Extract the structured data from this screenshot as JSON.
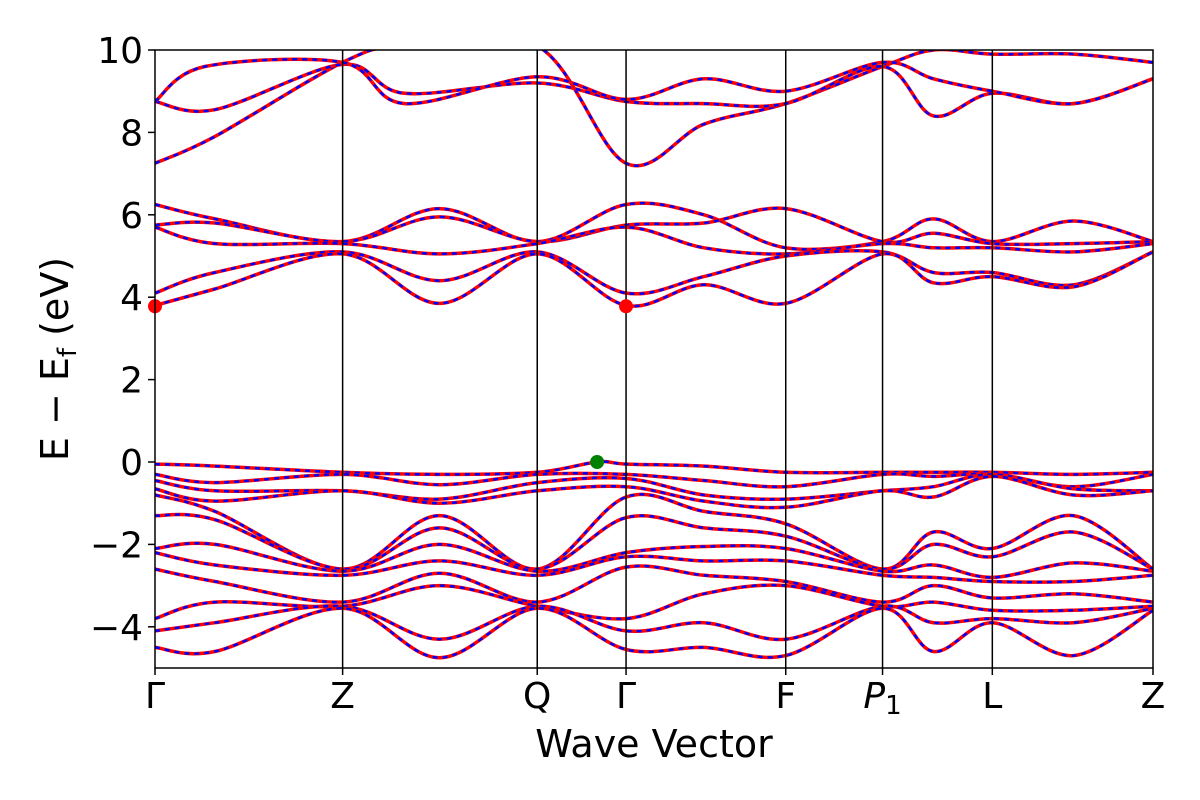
{
  "chart_data": {
    "type": "line",
    "xlabel": "Wave Vector",
    "ylabel": "E − E_f (eV)",
    "ylabel_parts": {
      "pre": "E − E",
      "sub": "f",
      "post": " (eV)"
    },
    "ylim": [
      -5,
      10
    ],
    "yticks": [
      -4,
      -2,
      0,
      2,
      4,
      6,
      8,
      10
    ],
    "ytick_labels": [
      "−4",
      "−2",
      "0",
      "2",
      "4",
      "6",
      "8",
      "10"
    ],
    "xlim": [
      0,
      1
    ],
    "high_symmetry_points": [
      {
        "label": "Γ",
        "x": 0.0
      },
      {
        "label": "Z",
        "x": 0.188
      },
      {
        "label": "Q",
        "x": 0.383
      },
      {
        "label": "Γ",
        "x": 0.472
      },
      {
        "label": "F",
        "x": 0.632
      },
      {
        "label": "P",
        "sub": "1",
        "italic": true,
        "x": 0.729
      },
      {
        "label": "L",
        "x": 0.839
      },
      {
        "label": "Z",
        "x": 1.0
      }
    ],
    "band_colors": {
      "line": "#ff0000",
      "dash": "#0000ff"
    },
    "markers": [
      {
        "kind": "cbm",
        "x": 0.0,
        "y": 3.78,
        "color": "#ff0000"
      },
      {
        "kind": "cbm",
        "x": 0.472,
        "y": 3.78,
        "color": "#ff0000"
      },
      {
        "kind": "vbm",
        "x": 0.443,
        "y": 0.0,
        "color": "#008000"
      }
    ],
    "series": [
      {
        "values": [
          [
            0,
            7.25
          ],
          [
            0.06,
            7.9
          ],
          [
            0.188,
            9.7
          ],
          [
            0.25,
            10.1
          ],
          [
            0.383,
            10.1
          ],
          [
            0.472,
            7.25
          ],
          [
            0.55,
            8.2
          ],
          [
            0.632,
            8.7
          ],
          [
            0.729,
            9.6
          ],
          [
            0.78,
            10.0
          ],
          [
            0.839,
            9.9
          ],
          [
            0.92,
            9.9
          ],
          [
            1.0,
            9.7
          ]
        ]
      },
      {
        "values": [
          [
            0,
            8.75
          ],
          [
            0.06,
            8.55
          ],
          [
            0.188,
            9.65
          ],
          [
            0.25,
            8.95
          ],
          [
            0.383,
            9.2
          ],
          [
            0.472,
            8.75
          ],
          [
            0.55,
            8.7
          ],
          [
            0.632,
            8.7
          ],
          [
            0.729,
            9.6
          ],
          [
            0.78,
            8.4
          ],
          [
            0.839,
            8.95
          ],
          [
            0.92,
            8.7
          ],
          [
            1.0,
            9.3
          ]
        ]
      },
      {
        "values": [
          [
            0,
            8.75
          ],
          [
            0.05,
            9.6
          ],
          [
            0.188,
            9.7
          ],
          [
            0.25,
            8.7
          ],
          [
            0.383,
            9.35
          ],
          [
            0.472,
            8.8
          ],
          [
            0.55,
            9.3
          ],
          [
            0.632,
            9.0
          ],
          [
            0.729,
            9.7
          ],
          [
            0.78,
            9.3
          ],
          [
            0.839,
            9.0
          ],
          [
            0.92,
            8.7
          ],
          [
            1.0,
            9.3
          ]
        ]
      },
      {
        "values": [
          [
            0,
            6.25
          ],
          [
            0.06,
            5.9
          ],
          [
            0.188,
            5.35
          ],
          [
            0.285,
            6.15
          ],
          [
            0.383,
            5.35
          ],
          [
            0.472,
            6.25
          ],
          [
            0.55,
            6.0
          ],
          [
            0.632,
            5.2
          ],
          [
            0.729,
            5.35
          ],
          [
            0.78,
            5.9
          ],
          [
            0.839,
            5.35
          ],
          [
            0.92,
            5.85
          ],
          [
            1.0,
            5.35
          ]
        ]
      },
      {
        "values": [
          [
            0,
            5.75
          ],
          [
            0.06,
            5.8
          ],
          [
            0.188,
            5.35
          ],
          [
            0.285,
            5.95
          ],
          [
            0.383,
            5.35
          ],
          [
            0.472,
            5.75
          ],
          [
            0.55,
            5.8
          ],
          [
            0.632,
            6.15
          ],
          [
            0.729,
            5.35
          ],
          [
            0.78,
            5.55
          ],
          [
            0.839,
            5.3
          ],
          [
            0.92,
            5.3
          ],
          [
            1.0,
            5.35
          ]
        ]
      },
      {
        "values": [
          [
            0,
            5.7
          ],
          [
            0.06,
            5.3
          ],
          [
            0.188,
            5.3
          ],
          [
            0.285,
            5.05
          ],
          [
            0.383,
            5.3
          ],
          [
            0.472,
            5.7
          ],
          [
            0.55,
            5.2
          ],
          [
            0.632,
            5.05
          ],
          [
            0.729,
            5.3
          ],
          [
            0.78,
            5.2
          ],
          [
            0.839,
            5.2
          ],
          [
            0.92,
            5.1
          ],
          [
            1.0,
            5.3
          ]
        ]
      },
      {
        "values": [
          [
            0,
            4.1
          ],
          [
            0.06,
            4.6
          ],
          [
            0.188,
            5.1
          ],
          [
            0.285,
            4.4
          ],
          [
            0.383,
            5.1
          ],
          [
            0.472,
            4.1
          ],
          [
            0.55,
            4.5
          ],
          [
            0.632,
            5.0
          ],
          [
            0.729,
            5.1
          ],
          [
            0.78,
            4.6
          ],
          [
            0.839,
            4.6
          ],
          [
            0.92,
            4.3
          ],
          [
            1.0,
            5.1
          ]
        ]
      },
      {
        "values": [
          [
            0,
            3.8
          ],
          [
            0.06,
            4.2
          ],
          [
            0.188,
            5.05
          ],
          [
            0.285,
            3.85
          ],
          [
            0.383,
            5.05
          ],
          [
            0.472,
            3.8
          ],
          [
            0.55,
            4.3
          ],
          [
            0.632,
            3.85
          ],
          [
            0.729,
            5.05
          ],
          [
            0.78,
            4.35
          ],
          [
            0.839,
            4.5
          ],
          [
            0.92,
            4.25
          ],
          [
            1.0,
            5.1
          ]
        ]
      },
      {
        "values": [
          [
            0,
            -0.05
          ],
          [
            0.06,
            -0.1
          ],
          [
            0.188,
            -0.25
          ],
          [
            0.285,
            -0.3
          ],
          [
            0.383,
            -0.25
          ],
          [
            0.443,
            0.0
          ],
          [
            0.472,
            -0.05
          ],
          [
            0.55,
            -0.1
          ],
          [
            0.632,
            -0.25
          ],
          [
            0.729,
            -0.25
          ],
          [
            0.78,
            -0.25
          ],
          [
            0.839,
            -0.25
          ],
          [
            0.92,
            -0.3
          ],
          [
            1.0,
            -0.25
          ]
        ]
      },
      {
        "values": [
          [
            0,
            -0.3
          ],
          [
            0.06,
            -0.5
          ],
          [
            0.188,
            -0.3
          ],
          [
            0.285,
            -0.55
          ],
          [
            0.383,
            -0.3
          ],
          [
            0.472,
            -0.3
          ],
          [
            0.55,
            -0.45
          ],
          [
            0.632,
            -0.6
          ],
          [
            0.729,
            -0.3
          ],
          [
            0.78,
            -0.35
          ],
          [
            0.839,
            -0.3
          ],
          [
            0.92,
            -0.6
          ],
          [
            1.0,
            -0.3
          ]
        ]
      },
      {
        "values": [
          [
            0,
            -0.45
          ],
          [
            0.06,
            -0.7
          ],
          [
            0.188,
            -0.7
          ],
          [
            0.285,
            -0.9
          ],
          [
            0.383,
            -0.5
          ],
          [
            0.472,
            -0.4
          ],
          [
            0.55,
            -0.8
          ],
          [
            0.632,
            -0.9
          ],
          [
            0.729,
            -0.7
          ],
          [
            0.78,
            -0.6
          ],
          [
            0.839,
            -0.3
          ],
          [
            0.92,
            -0.65
          ],
          [
            1.0,
            -0.7
          ]
        ]
      },
      {
        "values": [
          [
            0,
            -0.65
          ],
          [
            0.06,
            -0.95
          ],
          [
            0.188,
            -0.7
          ],
          [
            0.285,
            -1.0
          ],
          [
            0.383,
            -0.7
          ],
          [
            0.472,
            -0.6
          ],
          [
            0.55,
            -0.95
          ],
          [
            0.632,
            -1.1
          ],
          [
            0.729,
            -0.7
          ],
          [
            0.78,
            -0.85
          ],
          [
            0.839,
            -0.35
          ],
          [
            0.92,
            -0.8
          ],
          [
            1.0,
            -0.7
          ]
        ]
      },
      {
        "values": [
          [
            0,
            -0.8
          ],
          [
            0.06,
            -1.2
          ],
          [
            0.188,
            -2.6
          ],
          [
            0.285,
            -1.3
          ],
          [
            0.383,
            -2.6
          ],
          [
            0.472,
            -0.85
          ],
          [
            0.55,
            -1.2
          ],
          [
            0.632,
            -1.5
          ],
          [
            0.729,
            -2.6
          ],
          [
            0.78,
            -1.7
          ],
          [
            0.839,
            -2.1
          ],
          [
            0.92,
            -1.3
          ],
          [
            1.0,
            -2.6
          ]
        ]
      },
      {
        "values": [
          [
            0,
            -1.3
          ],
          [
            0.06,
            -1.4
          ],
          [
            0.188,
            -2.6
          ],
          [
            0.285,
            -1.6
          ],
          [
            0.383,
            -2.6
          ],
          [
            0.472,
            -1.35
          ],
          [
            0.55,
            -1.6
          ],
          [
            0.632,
            -1.8
          ],
          [
            0.729,
            -2.6
          ],
          [
            0.78,
            -2.0
          ],
          [
            0.839,
            -2.3
          ],
          [
            0.92,
            -1.7
          ],
          [
            1.0,
            -2.6
          ]
        ]
      },
      {
        "values": [
          [
            0,
            -2.1
          ],
          [
            0.06,
            -2.0
          ],
          [
            0.188,
            -2.65
          ],
          [
            0.285,
            -2.0
          ],
          [
            0.383,
            -2.65
          ],
          [
            0.472,
            -2.2
          ],
          [
            0.55,
            -2.05
          ],
          [
            0.632,
            -2.1
          ],
          [
            0.729,
            -2.65
          ],
          [
            0.78,
            -2.5
          ],
          [
            0.839,
            -2.8
          ],
          [
            0.92,
            -2.45
          ],
          [
            1.0,
            -2.65
          ]
        ]
      },
      {
        "values": [
          [
            0,
            -2.2
          ],
          [
            0.06,
            -2.5
          ],
          [
            0.188,
            -2.75
          ],
          [
            0.285,
            -2.4
          ],
          [
            0.383,
            -2.75
          ],
          [
            0.472,
            -2.3
          ],
          [
            0.55,
            -2.4
          ],
          [
            0.632,
            -2.4
          ],
          [
            0.729,
            -2.75
          ],
          [
            0.78,
            -2.8
          ],
          [
            0.839,
            -2.9
          ],
          [
            0.92,
            -2.9
          ],
          [
            1.0,
            -2.75
          ]
        ]
      },
      {
        "values": [
          [
            0,
            -2.6
          ],
          [
            0.06,
            -2.9
          ],
          [
            0.188,
            -3.4
          ],
          [
            0.285,
            -2.7
          ],
          [
            0.383,
            -3.4
          ],
          [
            0.472,
            -2.55
          ],
          [
            0.55,
            -2.75
          ],
          [
            0.632,
            -2.9
          ],
          [
            0.729,
            -3.4
          ],
          [
            0.78,
            -3.0
          ],
          [
            0.839,
            -3.3
          ],
          [
            0.92,
            -3.2
          ],
          [
            1.0,
            -3.4
          ]
        ]
      },
      {
        "values": [
          [
            0,
            -3.8
          ],
          [
            0.06,
            -3.4
          ],
          [
            0.188,
            -3.5
          ],
          [
            0.285,
            -3.0
          ],
          [
            0.383,
            -3.5
          ],
          [
            0.472,
            -3.8
          ],
          [
            0.55,
            -3.2
          ],
          [
            0.632,
            -3.0
          ],
          [
            0.729,
            -3.5
          ],
          [
            0.78,
            -3.4
          ],
          [
            0.839,
            -3.6
          ],
          [
            0.92,
            -3.6
          ],
          [
            1.0,
            -3.5
          ]
        ]
      },
      {
        "values": [
          [
            0,
            -4.1
          ],
          [
            0.06,
            -3.9
          ],
          [
            0.188,
            -3.5
          ],
          [
            0.285,
            -4.3
          ],
          [
            0.383,
            -3.5
          ],
          [
            0.472,
            -4.1
          ],
          [
            0.55,
            -3.9
          ],
          [
            0.632,
            -4.3
          ],
          [
            0.729,
            -3.5
          ],
          [
            0.78,
            -3.9
          ],
          [
            0.839,
            -3.8
          ],
          [
            0.92,
            -3.9
          ],
          [
            1.0,
            -3.55
          ]
        ]
      },
      {
        "values": [
          [
            0,
            -4.5
          ],
          [
            0.06,
            -4.6
          ],
          [
            0.188,
            -3.55
          ],
          [
            0.285,
            -4.75
          ],
          [
            0.383,
            -3.55
          ],
          [
            0.472,
            -4.55
          ],
          [
            0.55,
            -4.5
          ],
          [
            0.632,
            -4.7
          ],
          [
            0.729,
            -3.55
          ],
          [
            0.78,
            -4.6
          ],
          [
            0.839,
            -3.9
          ],
          [
            0.92,
            -4.7
          ],
          [
            1.0,
            -3.6
          ]
        ]
      }
    ]
  }
}
